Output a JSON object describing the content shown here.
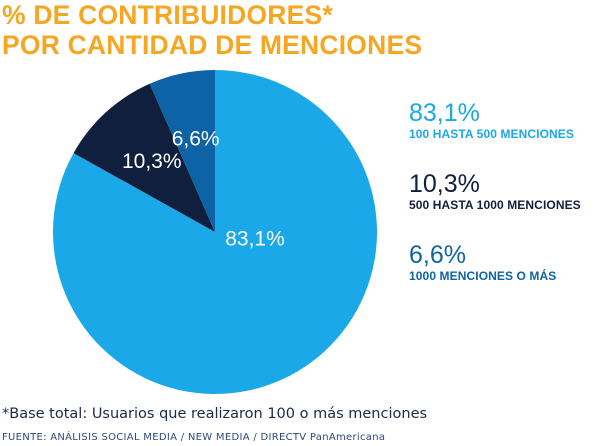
{
  "title_lines": [
    "% DE CONTRIBUIDORES*",
    "POR CANTIDAD DE MENCIONES"
  ],
  "footnote": "*Base total: Usuarios que realizaron 100 o más menciones",
  "source": "FUENTE: ANÁLISIS SOCIAL MEDIA / NEW MEDIA / DIRECTV PanAmericana",
  "colors": {
    "title": "#f5a623",
    "slice_1": "#1aa8e8",
    "slice_2": "#0f1f3d",
    "slice_3": "#0d63a5"
  },
  "chart_data": {
    "type": "pie",
    "start_angle_deg": 0,
    "direction": "clockwise",
    "legend_position": "right",
    "slices": [
      {
        "value": 83.1,
        "value_label": "83,1%",
        "legend_label": "100 HASTA 500 MENCIONES",
        "color": "#1aa8e8"
      },
      {
        "value": 10.3,
        "value_label": "10,3%",
        "legend_label": "500 HASTA 1000 MENCIONES",
        "color": "#0f1f3d"
      },
      {
        "value": 6.6,
        "value_label": "6,6%",
        "legend_label": "1000 MENCIONES O MÁS",
        "color": "#0d63a5"
      }
    ]
  }
}
